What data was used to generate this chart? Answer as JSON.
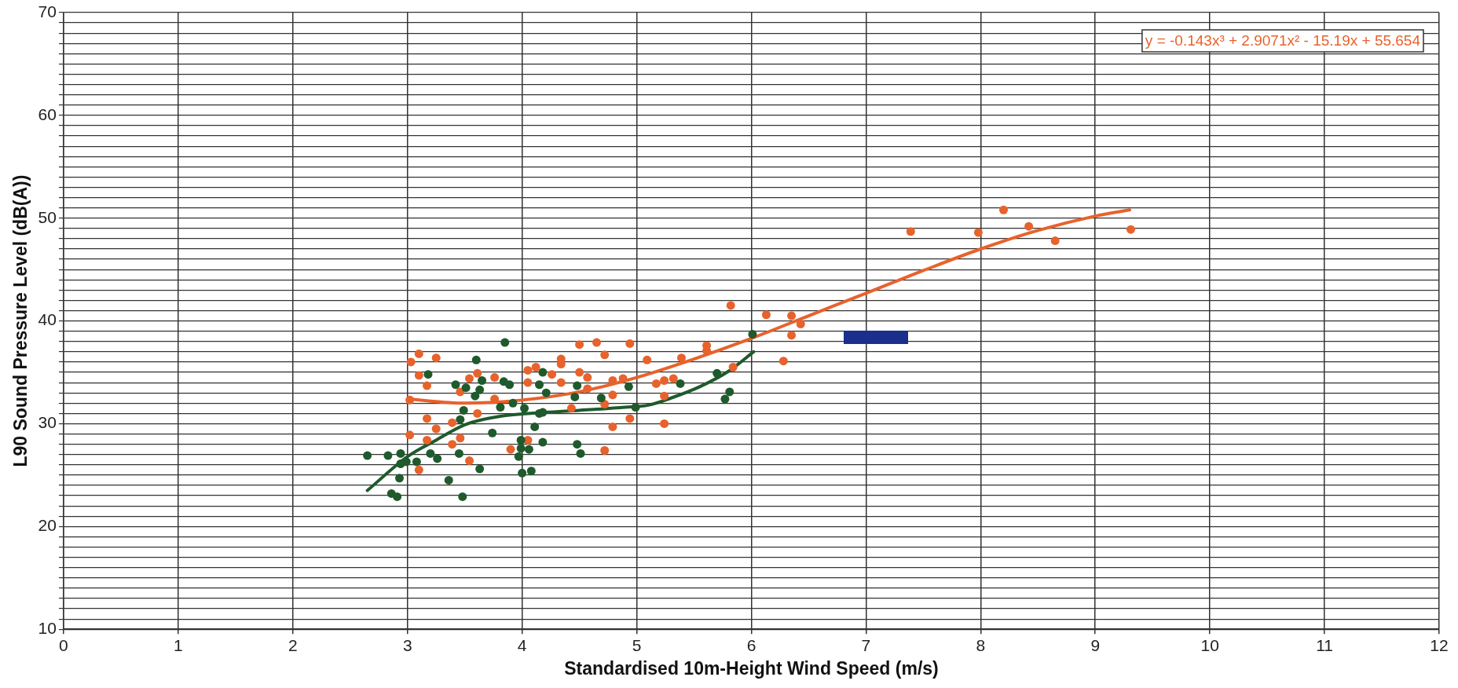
{
  "chart_data": {
    "type": "scatter",
    "xlabel": "Standardised 10m-Height Wind Speed (m/s)",
    "ylabel": "L90 Sound Pressure Level (dB(A))",
    "xlim": [
      0,
      12
    ],
    "xticks": [
      0,
      1,
      2,
      3,
      4,
      5,
      6,
      7,
      8,
      9,
      10,
      11,
      12
    ],
    "ylim": [
      10,
      70
    ],
    "yticks": [
      10,
      {
        "value": 11,
        "label": null
      },
      {
        "value": 12,
        "label": null
      },
      {
        "value": 13,
        "label": null
      },
      {
        "value": 14,
        "label": null
      },
      {
        "value": 15,
        "label": null
      },
      {
        "value": 16,
        "label": null
      },
      {
        "value": 17,
        "label": null
      },
      {
        "value": 18,
        "label": null
      },
      {
        "value": 19,
        "label": null
      },
      20,
      {
        "value": 21,
        "label": null
      },
      {
        "value": 22,
        "label": null
      },
      {
        "value": 23,
        "label": null
      },
      {
        "value": 24,
        "label": null
      },
      {
        "value": 25,
        "label": null
      },
      {
        "value": 26,
        "label": null
      },
      {
        "value": 27,
        "label": null
      },
      {
        "value": 28,
        "label": null
      },
      {
        "value": 29,
        "label": null
      },
      30,
      {
        "value": 31,
        "label": null
      },
      {
        "value": 32,
        "label": null
      },
      {
        "value": 33,
        "label": null
      },
      {
        "value": 34,
        "label": null
      },
      {
        "value": 35,
        "label": null
      },
      {
        "value": 36,
        "label": null
      },
      {
        "value": 37,
        "label": null
      },
      {
        "value": 38,
        "label": null
      },
      {
        "value": 39,
        "label": null
      },
      40,
      {
        "value": 41,
        "label": null
      },
      {
        "value": 42,
        "label": null
      },
      {
        "value": 43,
        "label": null
      },
      {
        "value": 44,
        "label": null
      },
      {
        "value": 45,
        "label": null
      },
      {
        "value": 46,
        "label": null
      },
      {
        "value": 47,
        "label": null
      },
      {
        "value": 48,
        "label": null
      },
      {
        "value": 49,
        "label": null
      },
      50,
      {
        "value": 51,
        "label": null
      },
      {
        "value": 52,
        "label": null
      },
      {
        "value": 53,
        "label": null
      },
      {
        "value": 54,
        "label": null
      },
      {
        "value": 55,
        "label": null
      },
      {
        "value": 56,
        "label": null
      },
      {
        "value": 57,
        "label": null
      },
      {
        "value": 58,
        "label": null
      },
      {
        "value": 59,
        "label": null
      },
      60,
      {
        "value": 61,
        "label": null
      },
      {
        "value": 62,
        "label": null
      },
      {
        "value": 63,
        "label": null
      },
      {
        "value": 64,
        "label": null
      },
      {
        "value": 65,
        "label": null
      },
      {
        "value": 66,
        "label": null
      },
      {
        "value": 67,
        "label": null
      },
      {
        "value": 68,
        "label": null
      },
      {
        "value": 69,
        "label": null
      },
      70
    ],
    "grid": true,
    "annotations": [
      "y = -0.143x³ + 2.9071x² - 15.19x + 55.654"
    ],
    "series": [
      {
        "type": "scatter",
        "marker": "circle",
        "color": "#1f5a2c",
        "x": [
          2.65,
          2.83,
          2.94,
          2.99,
          2.94,
          3.08,
          2.93,
          2.86,
          2.91,
          3.18,
          3.2,
          3.26,
          3.42,
          3.51,
          3.6,
          3.65,
          3.63,
          3.59,
          3.49,
          3.46,
          3.45,
          3.63,
          3.36,
          3.48,
          3.74,
          3.81,
          3.85,
          3.84,
          3.89,
          3.92,
          4.02,
          3.99,
          3.99,
          4.06,
          3.97,
          4.0,
          4.08,
          4.11,
          4.18,
          4.15,
          4.18,
          4.15,
          4.18,
          4.21,
          4.48,
          4.46,
          4.48,
          4.51,
          4.69,
          4.93,
          4.99,
          5.38,
          5.7,
          5.81,
          5.77,
          6.01
        ],
        "values": [
          26.9,
          26.9,
          27.1,
          26.3,
          26.1,
          26.3,
          24.7,
          23.2,
          22.9,
          34.8,
          27.1,
          26.6,
          33.8,
          33.5,
          36.2,
          34.2,
          33.3,
          32.7,
          31.3,
          30.4,
          27.1,
          25.6,
          24.5,
          22.9,
          29.1,
          31.6,
          37.9,
          34.1,
          33.8,
          32.0,
          31.5,
          28.4,
          27.6,
          27.5,
          26.8,
          25.2,
          25.4,
          29.7,
          28.2,
          31.0,
          31.1,
          33.8,
          35.0,
          33.0,
          33.7,
          32.6,
          28.0,
          27.1,
          32.5,
          33.6,
          31.6,
          33.9,
          34.9,
          33.1,
          32.4,
          38.7
        ]
      },
      {
        "type": "scatter",
        "marker": "circle",
        "color": "#e8622c",
        "x": [
          3.03,
          3.1,
          3.25,
          3.1,
          3.17,
          3.02,
          3.17,
          3.25,
          3.02,
          3.17,
          3.1,
          3.46,
          3.54,
          3.61,
          3.76,
          3.61,
          3.39,
          3.46,
          3.39,
          3.54,
          3.76,
          3.9,
          4.05,
          4.05,
          4.12,
          4.05,
          4.26,
          4.34,
          4.34,
          4.34,
          4.43,
          4.5,
          4.65,
          4.72,
          4.5,
          4.57,
          4.57,
          4.72,
          4.79,
          4.79,
          4.72,
          4.79,
          4.88,
          4.94,
          4.94,
          5.09,
          5.17,
          5.39,
          5.61,
          5.61,
          5.24,
          5.32,
          5.24,
          5.24,
          5.84,
          5.82,
          6.13,
          6.35,
          6.43,
          6.35,
          6.28,
          7.39,
          7.98,
          8.2,
          8.42,
          8.65,
          9.31
        ],
        "values": [
          36.0,
          36.8,
          36.4,
          34.7,
          33.7,
          32.3,
          30.5,
          29.5,
          28.9,
          28.4,
          25.5,
          33.1,
          34.4,
          34.9,
          34.5,
          31.0,
          30.1,
          28.6,
          28.0,
          26.4,
          32.4,
          27.5,
          28.4,
          35.2,
          35.5,
          34.0,
          34.8,
          36.3,
          35.8,
          34.0,
          31.5,
          37.7,
          37.9,
          36.7,
          35.0,
          34.5,
          33.4,
          31.9,
          32.8,
          29.7,
          27.4,
          34.2,
          34.4,
          37.8,
          30.5,
          36.2,
          33.9,
          36.4,
          37.6,
          37.1,
          34.2,
          34.4,
          32.7,
          30.0,
          35.5,
          41.5,
          40.6,
          40.5,
          39.7,
          38.6,
          36.1,
          48.7,
          48.6,
          50.8,
          49.2,
          47.8,
          48.9
        ]
      },
      {
        "type": "line",
        "marker": "none",
        "color": "#1f5a2c",
        "x": [
          2.65,
          3.0,
          3.25,
          3.5,
          3.8,
          4.2,
          4.5,
          4.9,
          5.1,
          5.3,
          5.55,
          5.8,
          6.02
        ],
        "values": [
          23.5,
          26.8,
          28.4,
          29.9,
          30.7,
          31.1,
          31.3,
          31.6,
          31.8,
          32.5,
          33.6,
          35.1,
          37.0
        ]
      },
      {
        "type": "line",
        "marker": "none",
        "color": "#e8622c",
        "x": [
          3.0,
          3.5,
          4.0,
          4.5,
          5.0,
          5.5,
          6.0,
          6.5,
          7.0,
          7.5,
          8.0,
          8.5,
          9.0,
          9.3
        ],
        "values": [
          32.4,
          32.0,
          32.3,
          33.1,
          34.5,
          36.3,
          38.3,
          40.5,
          42.7,
          44.9,
          47.0,
          48.8,
          50.2,
          50.8
        ]
      }
    ]
  }
}
